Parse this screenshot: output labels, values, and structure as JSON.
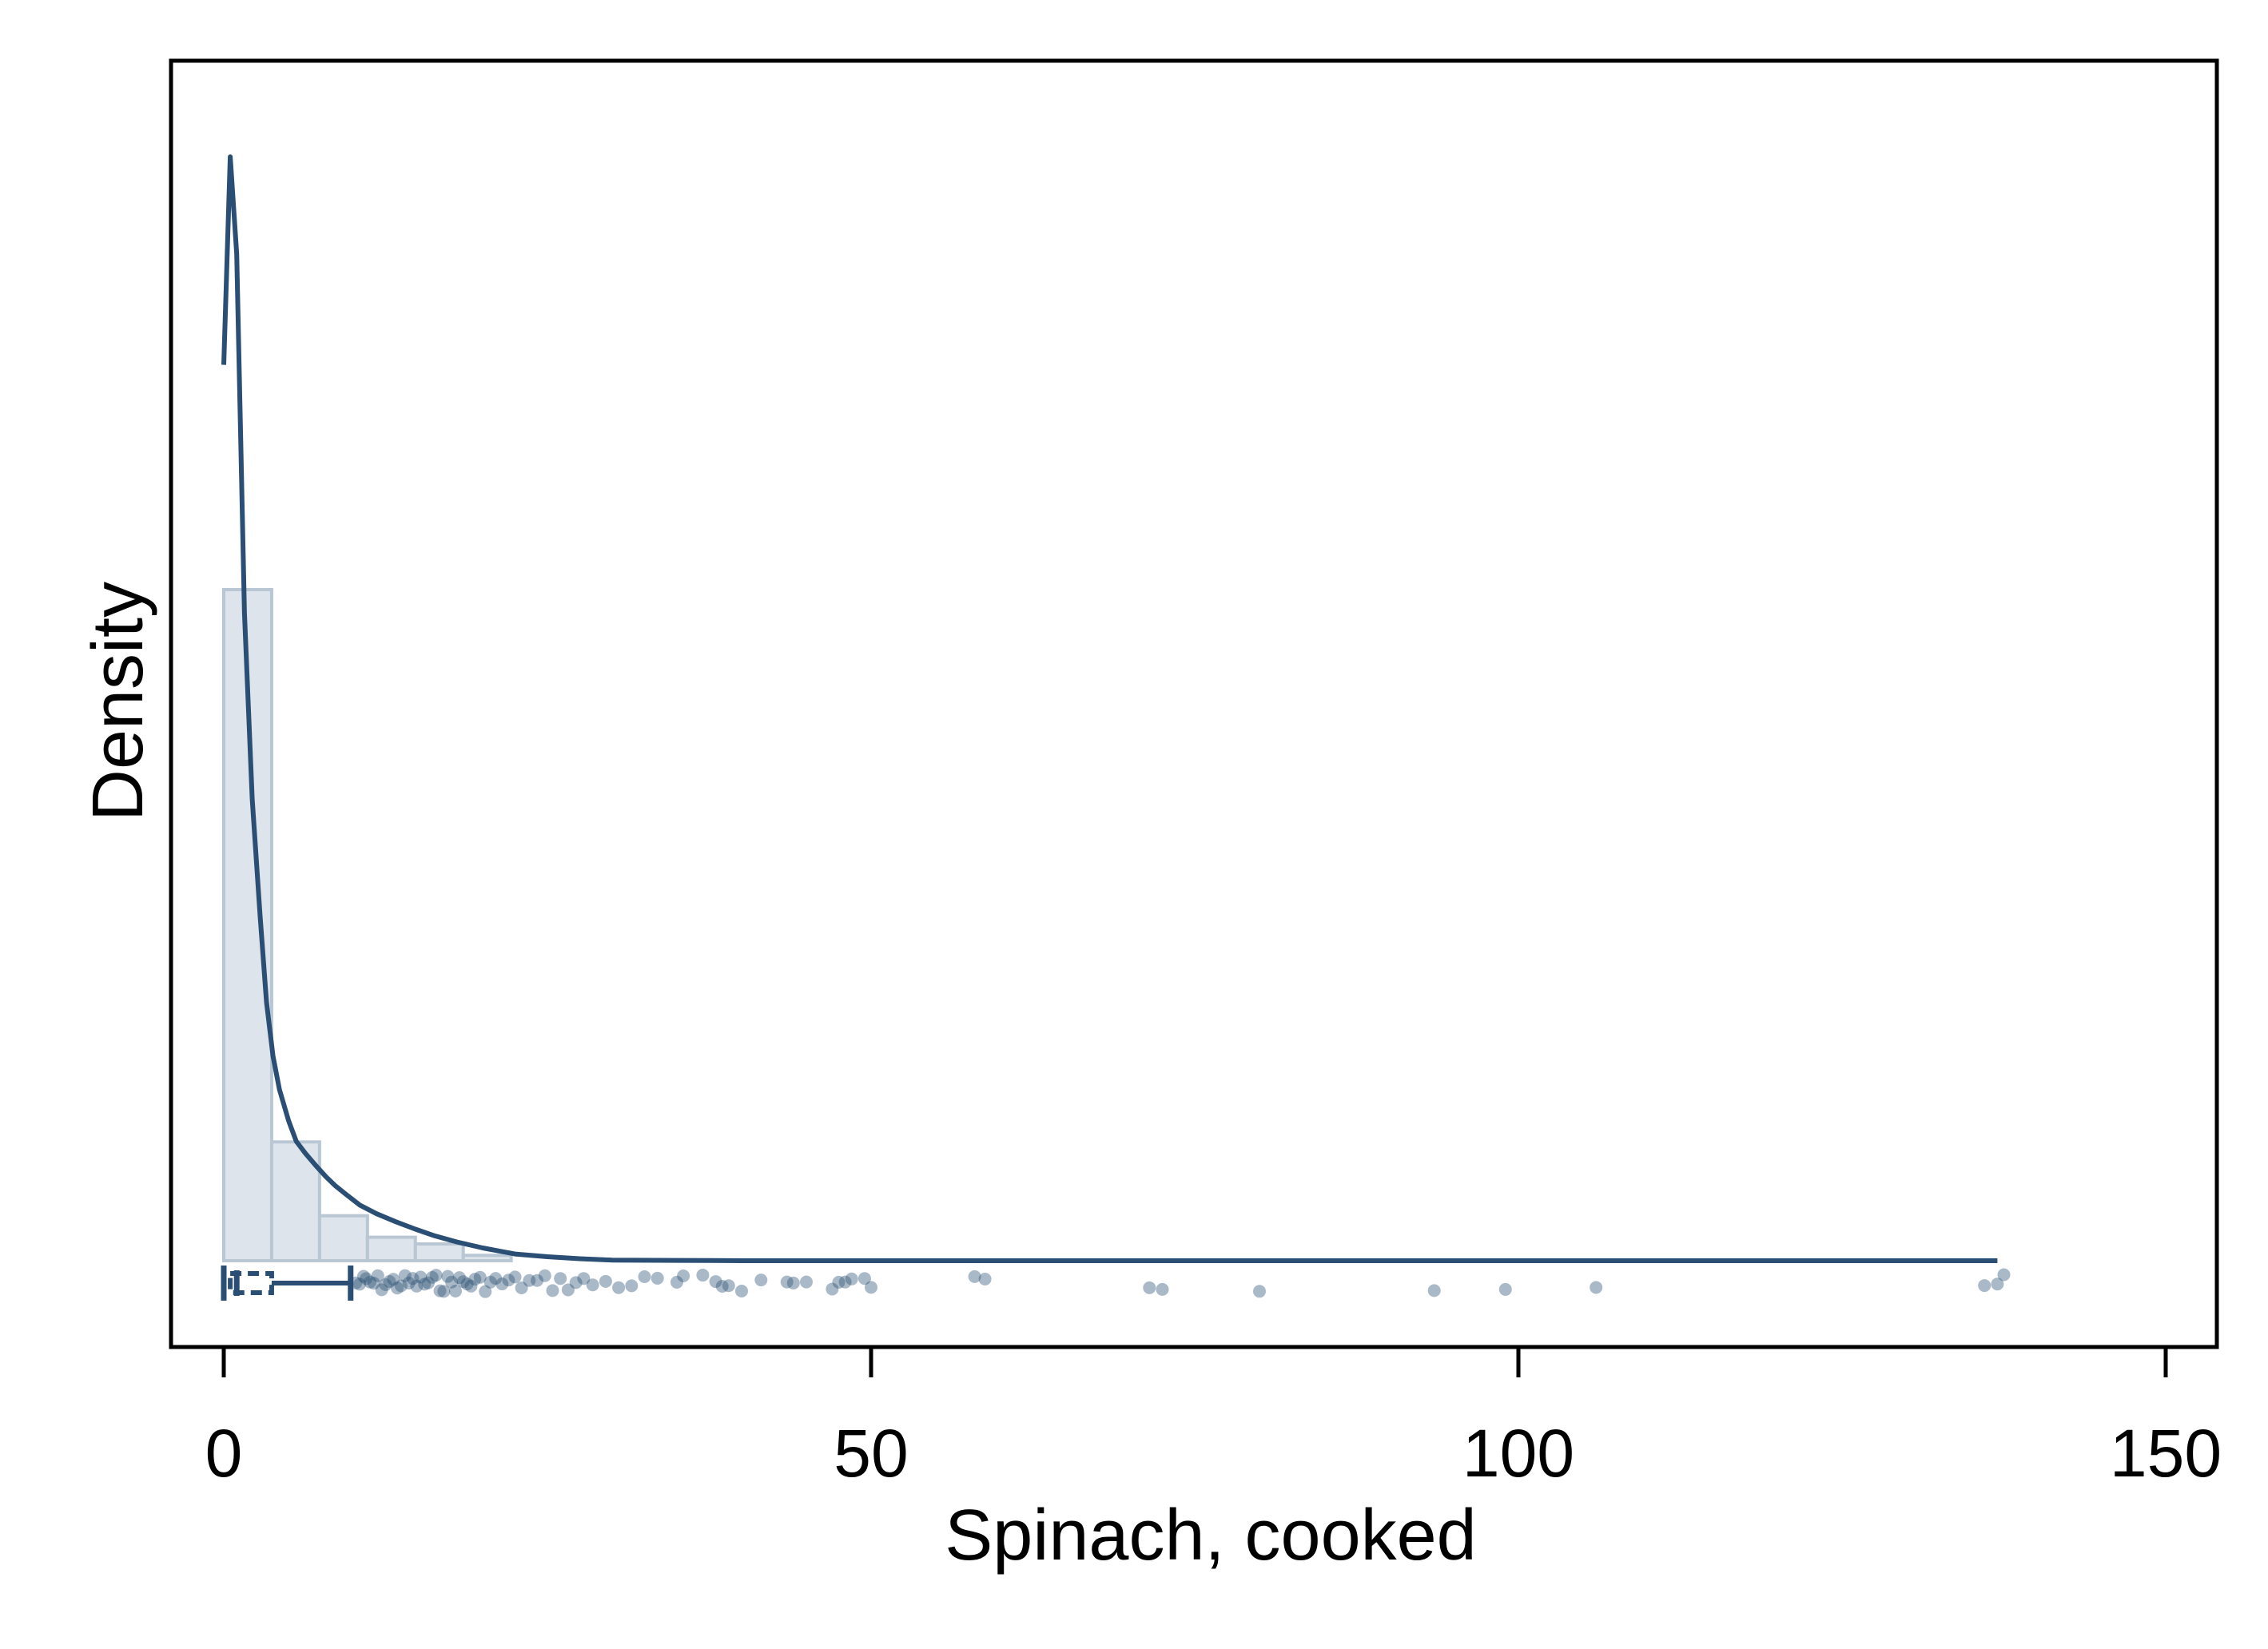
{
  "chart_data": {
    "type": "histogram-density-raincloud",
    "xlabel": "Spinach, cooked",
    "ylabel": "Density",
    "xlim": [
      -4,
      154
    ],
    "xticks": [
      0,
      50,
      100,
      150
    ],
    "xtick_labels": [
      "0",
      "50",
      "100",
      "150"
    ],
    "grid": false,
    "legend": "none",
    "colors": {
      "line": "#2b4f74",
      "bar_fill": "#dde4eb",
      "bar_stroke": "#b9c6d4",
      "points": "#2b4f74"
    },
    "histogram": {
      "bin_width": 3.7,
      "bins": [
        {
          "x0": 0.0,
          "x1": 3.7,
          "density": 0.1
        },
        {
          "x0": 3.7,
          "x1": 7.4,
          "density": 0.0177
        },
        {
          "x0": 7.4,
          "x1": 11.1,
          "density": 0.0067
        },
        {
          "x0": 11.1,
          "x1": 14.8,
          "density": 0.0035
        },
        {
          "x0": 14.8,
          "x1": 18.5,
          "density": 0.0025
        },
        {
          "x0": 18.5,
          "x1": 22.2,
          "density": 0.0008
        }
      ]
    },
    "density_curve": {
      "x": [
        0,
        0.5,
        1.0,
        1.6,
        2.2,
        2.8,
        3.3,
        3.8,
        4.3,
        5.0,
        5.6,
        6.3,
        7.1,
        7.9,
        8.6,
        9.5,
        10.5,
        11.8,
        13.3,
        14.8,
        16.3,
        18.0,
        20.0,
        22.5,
        25.0,
        27.5,
        30.0,
        35.0,
        40.0,
        50.0,
        60.0,
        80.0,
        100.0,
        120.0,
        130.0,
        137.0
      ],
      "y": [
        0.1335,
        0.1645,
        0.15,
        0.0965,
        0.0688,
        0.0515,
        0.0385,
        0.0305,
        0.0255,
        0.0209,
        0.0178,
        0.016,
        0.0142,
        0.0125,
        0.0112,
        0.0098,
        0.0083,
        0.007,
        0.0058,
        0.0047,
        0.0037,
        0.0028,
        0.0019,
        0.001,
        0.0006,
        0.0003,
        0.0001,
        5e-05,
        0.0,
        0.0,
        0.0,
        0.0,
        0.0,
        0.0,
        0.0,
        0.0
      ]
    },
    "boxplot": {
      "min": 0,
      "q1": 0.5,
      "median": 1.0,
      "q3": 3.7,
      "whisker_high": 9.8
    },
    "points": [
      10.2,
      10.5,
      10.8,
      11.0,
      11.3,
      11.6,
      11.9,
      12.2,
      12.5,
      12.8,
      13.1,
      13.4,
      13.7,
      14.0,
      14.3,
      14.6,
      14.9,
      15.2,
      15.5,
      15.8,
      16.1,
      16.4,
      16.7,
      17.0,
      17.3,
      17.6,
      17.9,
      18.2,
      18.5,
      18.8,
      19.1,
      19.4,
      19.8,
      20.2,
      20.6,
      21.0,
      21.5,
      22.0,
      22.5,
      23.0,
      23.6,
      24.2,
      24.8,
      25.4,
      26.0,
      26.6,
      27.2,
      27.8,
      28.5,
      29.5,
      30.5,
      31.5,
      32.5,
      33.5,
      35.0,
      35.5,
      37.0,
      38.0,
      38.5,
      39.0,
      40.0,
      41.5,
      43.5,
      44.0,
      45.0,
      47.0,
      47.5,
      48.0,
      48.5,
      49.5,
      50.0,
      58.0,
      58.8,
      71.5,
      72.5,
      80.0,
      93.5,
      99.0,
      106.0,
      136.0,
      137.0,
      137.5
    ]
  }
}
